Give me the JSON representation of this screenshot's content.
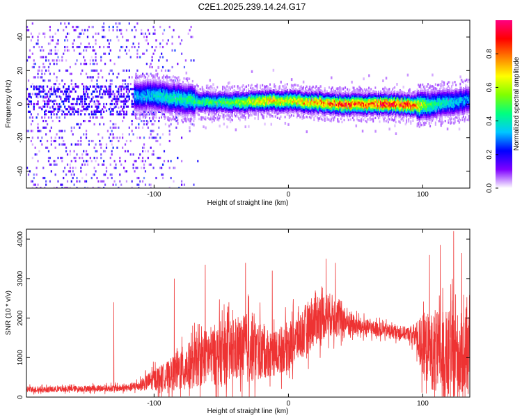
{
  "figure": {
    "title": "C2E1.2025.239.14.24.G17"
  },
  "chart_data": [
    {
      "type": "heatmap",
      "title": "",
      "xlabel": "Height of straight line (km)",
      "ylabel": "Frequency (Hz)",
      "xlim": [
        -195,
        135
      ],
      "ylim": [
        -50,
        50
      ],
      "x_ticks": [
        -100,
        0,
        100
      ],
      "x_tick_labels": [
        "-100",
        "0",
        "100"
      ],
      "y_ticks": [
        -40,
        -20,
        0,
        20,
        40
      ],
      "y_tick_labels": [
        "-40",
        "-20",
        "0",
        "20",
        "40"
      ],
      "colorbar": {
        "label": "Normalized spectral amplitude",
        "range": [
          0,
          1
        ],
        "ticks": [
          0.0,
          0.2,
          0.4,
          0.6,
          0.8
        ],
        "tick_labels": [
          "0.0",
          "0.2",
          "0.4",
          "0.6",
          "0.8"
        ],
        "colormap": [
          "#ffffff",
          "#7f00ff",
          "#0000ff",
          "#00c8ff",
          "#00ff80",
          "#80ff00",
          "#ffff00",
          "#ff8000",
          "#ff0000",
          "#ff0080"
        ]
      },
      "grid": false,
      "description_of_pattern": {
        "x_noise_region": [
          -195,
          -85
        ],
        "band_center_hz": [
          5,
          5,
          3,
          1,
          1,
          2,
          2,
          1,
          0,
          0,
          0,
          0,
          -1,
          -1,
          0,
          1,
          2,
          3
        ],
        "band_center_x": [
          -110,
          -100,
          -80,
          -60,
          -40,
          -20,
          0,
          20,
          40,
          60,
          70,
          80,
          90,
          100,
          110,
          120,
          130,
          135
        ],
        "band_peak_amplitude": [
          0.35,
          0.4,
          0.45,
          0.5,
          0.55,
          0.75,
          0.7,
          0.8,
          0.9,
          0.85,
          0.95,
          0.9,
          0.95,
          0.6,
          0.45,
          0.4,
          0.35,
          0.3
        ]
      }
    },
    {
      "type": "line",
      "title": "",
      "xlabel": "Height of straight line (km)",
      "ylabel": "SNR (10 * v/v)",
      "xlim": [
        -195,
        135
      ],
      "ylim": [
        0,
        4250
      ],
      "x_ticks": [
        -100,
        0,
        100
      ],
      "x_tick_labels": [
        "-100",
        "0",
        "100"
      ],
      "y_ticks": [
        0,
        1000,
        2000,
        3000,
        4000
      ],
      "y_tick_labels": [
        "0",
        "1000",
        "2000",
        "3000",
        "4000"
      ],
      "color": "#ee3333",
      "grid": false,
      "series": [
        {
          "x": [
            -195,
            -180,
            -160,
            -140,
            -120,
            -110,
            -100,
            -90,
            -80,
            -70,
            -60,
            -50,
            -40,
            -30,
            -20,
            -10,
            0,
            10,
            20,
            30,
            40,
            50,
            60,
            70,
            80,
            90,
            95,
            100,
            110,
            120,
            130,
            135
          ],
          "values": [
            200,
            190,
            210,
            220,
            230,
            300,
            450,
            550,
            700,
            850,
            1050,
            1100,
            1150,
            1250,
            1150,
            1100,
            1300,
            1600,
            2000,
            2100,
            1950,
            1800,
            1750,
            1700,
            1650,
            1600,
            1550,
            1300,
            1100,
            1000,
            1100,
            1000
          ],
          "spread": [
            120,
            110,
            110,
            120,
            130,
            200,
            400,
            500,
            800,
            900,
            1000,
            1200,
            1100,
            1300,
            1000,
            800,
            900,
            900,
            1000,
            800,
            700,
            350,
            300,
            250,
            250,
            250,
            500,
            1200,
            1500,
            1700,
            1500,
            1400
          ],
          "spikes": [
            [
              -130,
              2400
            ],
            [
              -85,
              3000
            ],
            [
              -62,
              3350
            ],
            [
              -32,
              3400
            ],
            [
              -12,
              3200
            ],
            [
              28,
              3500
            ],
            [
              35,
              3400
            ],
            [
              105,
              3600
            ],
            [
              113,
              3850
            ],
            [
              123,
              4200
            ],
            [
              129,
              3650
            ]
          ]
        }
      ]
    }
  ]
}
